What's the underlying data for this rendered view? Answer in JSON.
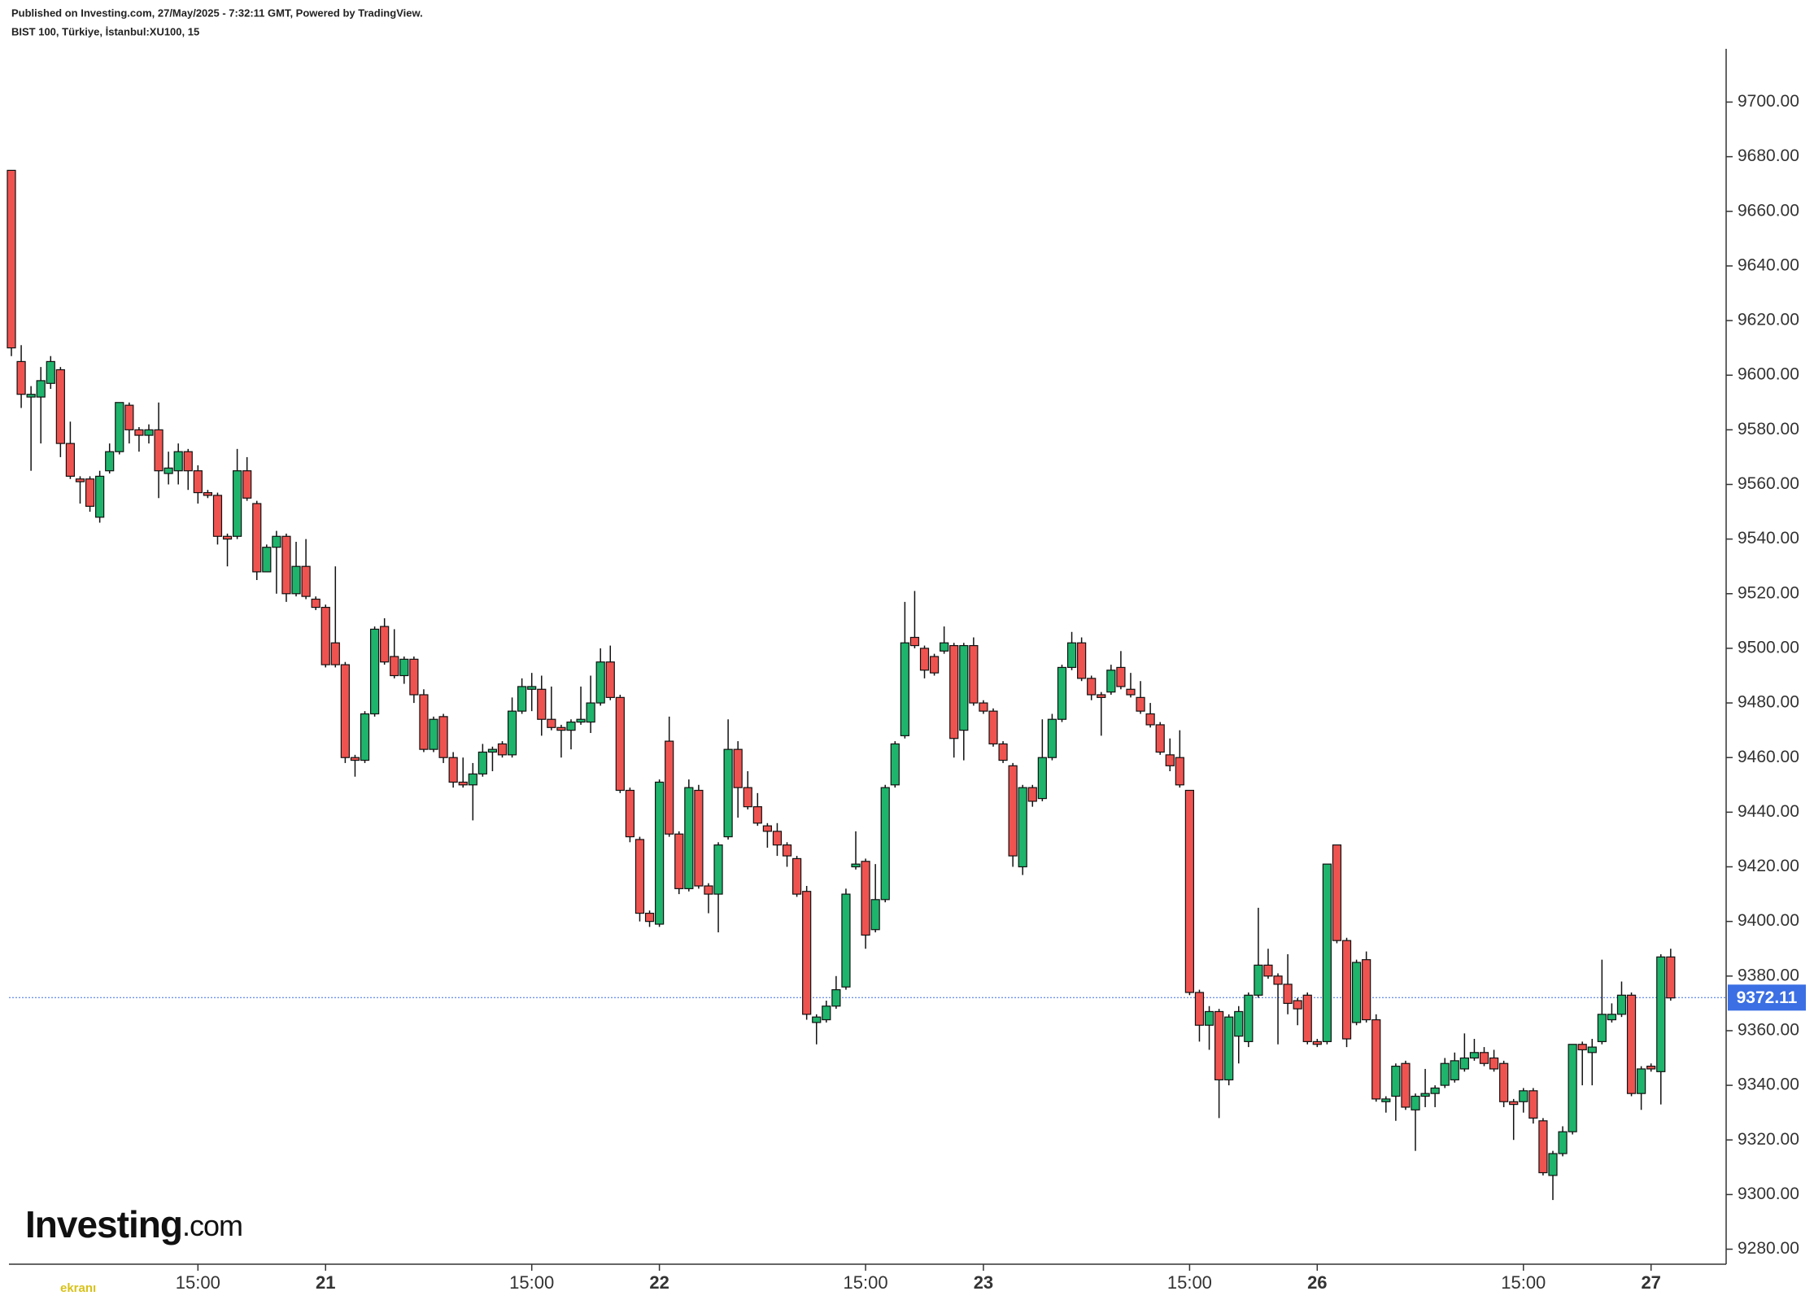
{
  "chart_data": {
    "type": "candlestick",
    "source": "Published on Investing.com, 27/May/2025 - 7:32:11 GMT, Powered by TradingView.",
    "title": "BIST 100, Türkiye, İstanbul:XU100, 15",
    "logo": "Investing",
    "logo_suffix": ".com",
    "watermark": "ekranı",
    "up_color": "#1eb46c",
    "down_color": "#ef5350",
    "last_price": 9372.11,
    "last_price_color": "#3b6fe3",
    "ylim": [
      9274.5,
      9719.5
    ],
    "yticks": [
      {
        "value": 9280,
        "label": "9280.00"
      },
      {
        "value": 9300,
        "label": "9300.00"
      },
      {
        "value": 9320,
        "label": "9320.00"
      },
      {
        "value": 9340,
        "label": "9340.00"
      },
      {
        "value": 9360,
        "label": "9360.00"
      },
      {
        "value": 9380,
        "label": "9380.00"
      },
      {
        "value": 9400,
        "label": "9400.00"
      },
      {
        "value": 9420,
        "label": "9420.00"
      },
      {
        "value": 9440,
        "label": "9440.00"
      },
      {
        "value": 9460,
        "label": "9460.00"
      },
      {
        "value": 9480,
        "label": "9480.00"
      },
      {
        "value": 9500,
        "label": "9500.00"
      },
      {
        "value": 9520,
        "label": "9520.00"
      },
      {
        "value": 9540,
        "label": "9540.00"
      },
      {
        "value": 9560,
        "label": "9560.00"
      },
      {
        "value": 9580,
        "label": "9580.00"
      },
      {
        "value": 9600,
        "label": "9600.00"
      },
      {
        "value": 9620,
        "label": "9620.00"
      },
      {
        "value": 9640,
        "label": "9640.00"
      },
      {
        "value": 9660,
        "label": "9660.00"
      },
      {
        "value": 9680,
        "label": "9680.00"
      },
      {
        "value": 9700,
        "label": "9700.00"
      }
    ],
    "categories": [
      null,
      null,
      null,
      null,
      null,
      null,
      null,
      null,
      null,
      null,
      null,
      null,
      null,
      null,
      null,
      null,
      null,
      null,
      null,
      "15:00",
      null,
      null,
      null,
      null,
      null,
      null,
      null,
      null,
      null,
      null,
      null,
      null,
      "21",
      null,
      null,
      null,
      null,
      null,
      null,
      null,
      null,
      null,
      null,
      null,
      null,
      null,
      null,
      null,
      null,
      null,
      null,
      null,
      null,
      "15:00",
      null,
      null,
      null,
      null,
      null,
      null,
      null,
      null,
      null,
      null,
      null,
      null,
      "22",
      null,
      null,
      null,
      null,
      null,
      null,
      null,
      null,
      null,
      null,
      null,
      null,
      null,
      null,
      null,
      null,
      null,
      null,
      null,
      null,
      "15:00",
      null,
      null,
      null,
      null,
      null,
      null,
      null,
      null,
      null,
      null,
      null,
      "23",
      null,
      null,
      null,
      null,
      null,
      null,
      null,
      null,
      null,
      null,
      null,
      null,
      null,
      null,
      null,
      null,
      null,
      null,
      null,
      null,
      "15:00",
      null,
      null,
      null,
      null,
      null,
      null,
      null,
      null,
      null,
      null,
      null,
      null,
      "26",
      null,
      null,
      null,
      null,
      null,
      null,
      null,
      null,
      null,
      null,
      null,
      null,
      null,
      null,
      null,
      null,
      null,
      null,
      null,
      null,
      "15:00",
      null,
      null,
      null,
      null,
      null,
      null,
      null,
      null,
      null,
      null,
      null,
      null,
      "27",
      null,
      null
    ],
    "ohlc": [
      [
        9675,
        9675,
        9607,
        9610
      ],
      [
        9605,
        9611,
        9588,
        9593
      ],
      [
        9592,
        9596,
        9565,
        9593
      ],
      [
        9592,
        9603,
        9575,
        9598
      ],
      [
        9597,
        9607,
        9595,
        9605
      ],
      [
        9602,
        9603,
        9570,
        9575
      ],
      [
        9575,
        9583,
        9562,
        9563
      ],
      [
        9562,
        9563,
        9553,
        9561
      ],
      [
        9562,
        9563,
        9550,
        9552
      ],
      [
        9548,
        9565,
        9546,
        9563
      ],
      [
        9565,
        9575,
        9564,
        9572
      ],
      [
        9572,
        9590,
        9571,
        9590
      ],
      [
        9589,
        9590,
        9575,
        9580
      ],
      [
        9580,
        9581,
        9572,
        9578
      ],
      [
        9578,
        9582,
        9575,
        9580
      ],
      [
        9580,
        9590,
        9555,
        9565
      ],
      [
        9564,
        9572,
        9560,
        9566
      ],
      [
        9565,
        9575,
        9560,
        9572
      ],
      [
        9572,
        9573,
        9558,
        9565
      ],
      [
        9565,
        9567,
        9553,
        9557
      ],
      [
        9557,
        9558,
        9555,
        9556
      ],
      [
        9556,
        9557,
        9538,
        9541
      ],
      [
        9541,
        9542,
        9530,
        9540
      ],
      [
        9541,
        9573,
        9540,
        9565
      ],
      [
        9565,
        9570,
        9554,
        9555
      ],
      [
        9553,
        9554,
        9525,
        9528
      ],
      [
        9528,
        9538,
        9528,
        9537
      ],
      [
        9537,
        9543,
        9520,
        9541
      ],
      [
        9541,
        9542,
        9517,
        9520
      ],
      [
        9520,
        9539,
        9519,
        9530
      ],
      [
        9530,
        9540,
        9518,
        9519
      ],
      [
        9518,
        9519,
        9514,
        9515
      ],
      [
        9515,
        9516,
        9493,
        9494
      ],
      [
        9502,
        9530,
        9493,
        9494
      ],
      [
        9494,
        9495,
        9458,
        9460
      ],
      [
        9460,
        9461,
        9453,
        9459
      ],
      [
        9459,
        9477,
        9458,
        9476
      ],
      [
        9476,
        9508,
        9475,
        9507
      ],
      [
        9508,
        9511,
        9494,
        9495
      ],
      [
        9497,
        9507,
        9489,
        9490
      ],
      [
        9490,
        9497,
        9487,
        9496
      ],
      [
        9496,
        9497,
        9480,
        9483
      ],
      [
        9483,
        9485,
        9462,
        9463
      ],
      [
        9463,
        9475,
        9462,
        9474
      ],
      [
        9475,
        9476,
        9458,
        9460
      ],
      [
        9460,
        9462,
        9449,
        9451
      ],
      [
        9451,
        9460,
        9449,
        9450
      ],
      [
        9450,
        9458,
        9437,
        9454
      ],
      [
        9454,
        9465,
        9453,
        9462
      ],
      [
        9462,
        9464,
        9455,
        9463
      ],
      [
        9465,
        9466,
        9460,
        9461
      ],
      [
        9461,
        9482,
        9460,
        9477
      ],
      [
        9477,
        9489,
        9476,
        9486
      ],
      [
        9485,
        9491,
        9477,
        9486
      ],
      [
        9485,
        9490,
        9468,
        9474
      ],
      [
        9474,
        9486,
        9470,
        9471
      ],
      [
        9471,
        9472,
        9460,
        9470
      ],
      [
        9470,
        9474,
        9463,
        9473
      ],
      [
        9473,
        9486,
        9472,
        9474
      ],
      [
        9473,
        9490,
        9469,
        9480
      ],
      [
        9480,
        9500,
        9479,
        9495
      ],
      [
        9495,
        9501,
        9481,
        9482
      ],
      [
        9482,
        9483,
        9447,
        9448
      ],
      [
        9448,
        9449,
        9429,
        9431
      ],
      [
        9430,
        9431,
        9400,
        9403
      ],
      [
        9403,
        9404,
        9398,
        9400
      ],
      [
        9399,
        9452,
        9398,
        9451
      ],
      [
        9466,
        9475,
        9431,
        9432
      ],
      [
        9432,
        9433,
        9410,
        9412
      ],
      [
        9412,
        9452,
        9411,
        9449
      ],
      [
        9448,
        9450,
        9412,
        9413
      ],
      [
        9413,
        9414,
        9403,
        9410
      ],
      [
        9410,
        9429,
        9396,
        9428
      ],
      [
        9431,
        9474,
        9430,
        9463
      ],
      [
        9463,
        9466,
        9438,
        9449
      ],
      [
        9449,
        9455,
        9441,
        9442
      ],
      [
        9442,
        9447,
        9435,
        9436
      ],
      [
        9435,
        9436,
        9427,
        9433
      ],
      [
        9433,
        9436,
        9424,
        9428
      ],
      [
        9428,
        9429,
        9420,
        9424
      ],
      [
        9423,
        9424,
        9409,
        9410
      ],
      [
        9411,
        9413,
        9364,
        9366
      ],
      [
        9363,
        9366,
        9355,
        9365
      ],
      [
        9364,
        9371,
        9363,
        9369
      ],
      [
        9369,
        9380,
        9368,
        9375
      ],
      [
        9376,
        9412,
        9375,
        9410
      ],
      [
        9420,
        9433,
        9419,
        9421
      ],
      [
        9422,
        9423,
        9390,
        9395
      ],
      [
        9397,
        9421,
        9396,
        9408
      ],
      [
        9408,
        9450,
        9407,
        9449
      ],
      [
        9450,
        9466,
        9449,
        9465
      ],
      [
        9468,
        9517,
        9467,
        9502
      ],
      [
        9504,
        9521,
        9500,
        9501
      ],
      [
        9500,
        9501,
        9489,
        9492
      ],
      [
        9497,
        9498,
        9490,
        9491
      ],
      [
        9499,
        9508,
        9498,
        9502
      ],
      [
        9501,
        9502,
        9460,
        9467
      ],
      [
        9470,
        9502,
        9459,
        9501
      ],
      [
        9501,
        9504,
        9479,
        9480
      ],
      [
        9480,
        9481,
        9476,
        9477
      ],
      [
        9477,
        9478,
        9464,
        9465
      ],
      [
        9465,
        9466,
        9458,
        9459
      ],
      [
        9457,
        9458,
        9420,
        9424
      ],
      [
        9420,
        9450,
        9417,
        9449
      ],
      [
        9449,
        9450,
        9442,
        9444
      ],
      [
        9445,
        9474,
        9444,
        9460
      ],
      [
        9460,
        9476,
        9459,
        9474
      ],
      [
        9474,
        9494,
        9473,
        9493
      ],
      [
        9493,
        9506,
        9492,
        9502
      ],
      [
        9502,
        9504,
        9488,
        9489
      ],
      [
        9489,
        9490,
        9481,
        9483
      ],
      [
        9483,
        9484,
        9468,
        9482
      ],
      [
        9484,
        9494,
        9483,
        9492
      ],
      [
        9493,
        9499,
        9485,
        9486
      ],
      [
        9485,
        9491,
        9482,
        9483
      ],
      [
        9482,
        9488,
        9476,
        9477
      ],
      [
        9476,
        9480,
        9471,
        9472
      ],
      [
        9472,
        9473,
        9461,
        9462
      ],
      [
        9461,
        9467,
        9455,
        9457
      ],
      [
        9460,
        9470,
        9449,
        9450
      ],
      [
        9448,
        9448,
        9373,
        9374
      ],
      [
        9374,
        9375,
        9356,
        9362
      ],
      [
        9362,
        9369,
        9353,
        9367
      ],
      [
        9367,
        9368,
        9328,
        9342
      ],
      [
        9342,
        9366,
        9340,
        9365
      ],
      [
        9358,
        9369,
        9348,
        9367
      ],
      [
        9356,
        9374,
        9354,
        9373
      ],
      [
        9373,
        9405,
        9372,
        9384
      ],
      [
        9384,
        9390,
        9379,
        9380
      ],
      [
        9380,
        9381,
        9355,
        9377
      ],
      [
        9377,
        9388,
        9366,
        9370
      ],
      [
        9371,
        9372,
        9362,
        9368
      ],
      [
        9373,
        9374,
        9355,
        9356
      ],
      [
        9356,
        9357,
        9354,
        9355
      ],
      [
        9356,
        9421,
        9355,
        9421
      ],
      [
        9428,
        9428,
        9392,
        9393
      ],
      [
        9393,
        9394,
        9354,
        9357
      ],
      [
        9363,
        9386,
        9362,
        9385
      ],
      [
        9386,
        9389,
        9363,
        9364
      ],
      [
        9364,
        9366,
        9334,
        9335
      ],
      [
        9334,
        9336,
        9330,
        9335
      ],
      [
        9336,
        9348,
        9327,
        9347
      ],
      [
        9348,
        9349,
        9331,
        9332
      ],
      [
        9331,
        9337,
        9316,
        9336
      ],
      [
        9336,
        9346,
        9332,
        9337
      ],
      [
        9337,
        9340,
        9332,
        9339
      ],
      [
        9340,
        9350,
        9339,
        9348
      ],
      [
        9342,
        9352,
        9341,
        9349
      ],
      [
        9346,
        9359,
        9345,
        9350
      ],
      [
        9350,
        9357,
        9349,
        9352
      ],
      [
        9352,
        9354,
        9347,
        9348
      ],
      [
        9350,
        9353,
        9345,
        9346
      ],
      [
        9348,
        9349,
        9332,
        9334
      ],
      [
        9334,
        9335,
        9320,
        9333
      ],
      [
        9334,
        9339,
        9330,
        9338
      ],
      [
        9338,
        9339,
        9326,
        9328
      ],
      [
        9327,
        9328,
        9307,
        9308
      ],
      [
        9307,
        9316,
        9298,
        9315
      ],
      [
        9315,
        9325,
        9314,
        9323
      ],
      [
        9323,
        9355,
        9322,
        9355
      ],
      [
        9355,
        9356,
        9340,
        9353
      ],
      [
        9352,
        9357,
        9340,
        9354
      ],
      [
        9356,
        9386,
        9355,
        9366
      ],
      [
        9364,
        9370,
        9363,
        9366
      ],
      [
        9366,
        9378,
        9365,
        9373
      ],
      [
        9373,
        9374,
        9336,
        9337
      ],
      [
        9337,
        9347,
        9331,
        9346
      ],
      [
        9347,
        9348,
        9345,
        9346
      ],
      [
        9345,
        9388,
        9333,
        9387
      ],
      [
        9387,
        9390,
        9371,
        9372
      ]
    ]
  }
}
